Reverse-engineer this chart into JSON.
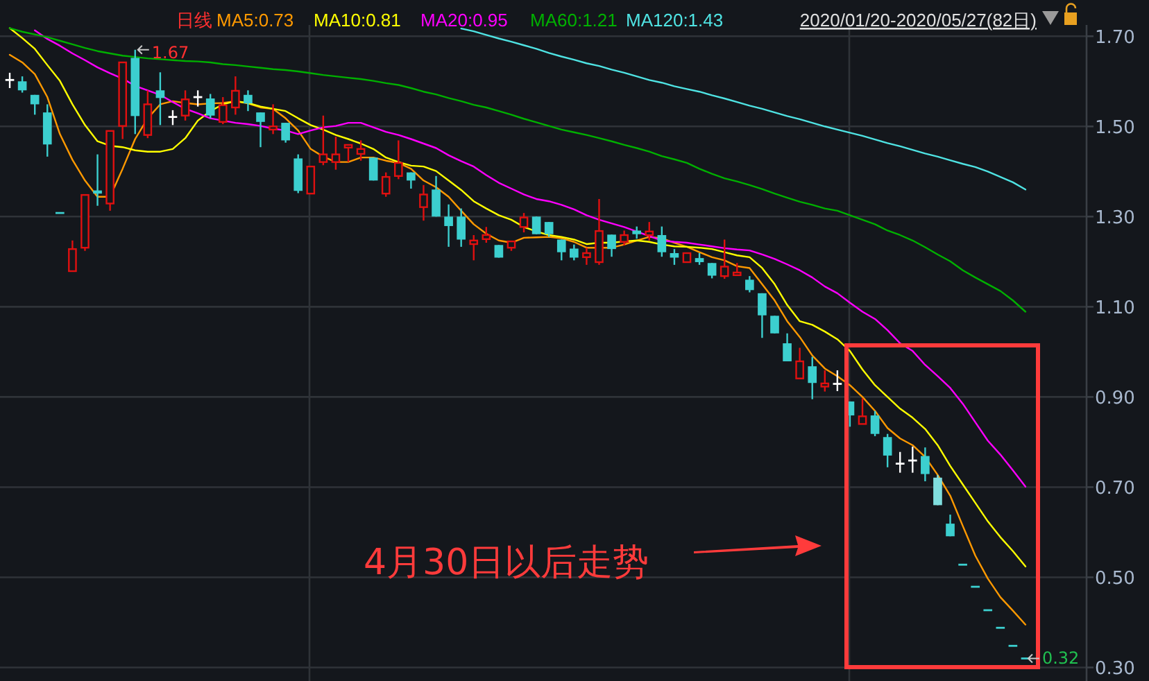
{
  "chart_data": {
    "type": "candlestick",
    "subtitle": "2020/01/20-2020/05/27(82日)",
    "annotations": [
      "日线",
      "4月30日以后走势",
      "1.67",
      "0.32"
    ],
    "categories": [
      null,
      null,
      null,
      null,
      null,
      null,
      null,
      null,
      null,
      null,
      null,
      null,
      null,
      null,
      null,
      null,
      null,
      null,
      null,
      null,
      null,
      null,
      null,
      null,
      null,
      null,
      null,
      null,
      null,
      null,
      null,
      null,
      null,
      null,
      null,
      null,
      null,
      null,
      null,
      null,
      null,
      null,
      null,
      null,
      null,
      null,
      null,
      null,
      null,
      null,
      null,
      null,
      null,
      null,
      null,
      null,
      null,
      null,
      null,
      null,
      null,
      null,
      null,
      null,
      null,
      null,
      null,
      null,
      null,
      null,
      null,
      null,
      null,
      null,
      null,
      null,
      null,
      null,
      null,
      null,
      null,
      null
    ],
    "ohlc": [
      [
        1.603,
        1.619,
        1.585,
        1.603
      ],
      [
        1.6,
        1.611,
        1.575,
        1.58
      ],
      [
        1.57,
        1.57,
        1.526,
        1.549
      ],
      [
        1.531,
        1.549,
        1.433,
        1.46
      ],
      [
        1.308,
        1.308,
        1.308,
        1.308
      ],
      [
        1.179,
        1.247,
        1.179,
        1.228
      ],
      [
        1.231,
        1.348,
        1.224,
        1.348
      ],
      [
        1.358,
        1.438,
        1.324,
        1.351
      ],
      [
        1.329,
        1.49,
        1.313,
        1.49
      ],
      [
        1.501,
        1.642,
        1.472,
        1.642
      ],
      [
        1.652,
        1.67,
        1.483,
        1.523
      ],
      [
        1.481,
        1.58,
        1.474,
        1.549
      ],
      [
        1.58,
        1.62,
        1.503,
        1.563
      ],
      [
        1.521,
        1.536,
        1.503,
        1.521
      ],
      [
        1.524,
        1.58,
        1.513,
        1.56
      ],
      [
        1.565,
        1.58,
        1.544,
        1.565
      ],
      [
        1.562,
        1.572,
        1.518,
        1.524
      ],
      [
        1.51,
        1.565,
        1.505,
        1.547
      ],
      [
        1.542,
        1.611,
        1.526,
        1.579
      ],
      [
        1.57,
        1.58,
        1.534,
        1.551
      ],
      [
        1.531,
        1.531,
        1.454,
        1.51
      ],
      [
        1.493,
        1.549,
        1.483,
        1.5
      ],
      [
        1.508,
        1.508,
        1.464,
        1.469
      ],
      [
        1.429,
        1.438,
        1.352,
        1.357
      ],
      [
        1.351,
        1.411,
        1.351,
        1.411
      ],
      [
        1.421,
        1.524,
        1.414,
        1.438
      ],
      [
        1.421,
        1.477,
        1.404,
        1.438
      ],
      [
        1.453,
        1.459,
        1.421,
        1.459
      ],
      [
        1.439,
        1.469,
        1.424,
        1.45
      ],
      [
        1.431,
        1.431,
        1.38,
        1.38
      ],
      [
        1.351,
        1.398,
        1.344,
        1.388
      ],
      [
        1.39,
        1.469,
        1.383,
        1.419
      ],
      [
        1.398,
        1.398,
        1.362,
        1.38
      ],
      [
        1.321,
        1.37,
        1.291,
        1.349
      ],
      [
        1.36,
        1.39,
        1.3,
        1.3
      ],
      [
        1.3,
        1.327,
        1.233,
        1.279
      ],
      [
        1.3,
        1.318,
        1.233,
        1.249
      ],
      [
        1.239,
        1.259,
        1.203,
        1.247
      ],
      [
        1.25,
        1.277,
        1.242,
        1.259
      ],
      [
        1.237,
        1.237,
        1.209,
        1.209
      ],
      [
        1.231,
        1.245,
        1.224,
        1.245
      ],
      [
        1.277,
        1.308,
        1.265,
        1.298
      ],
      [
        1.3,
        1.3,
        1.261,
        1.261
      ],
      [
        1.288,
        1.288,
        1.255,
        1.261
      ],
      [
        1.249,
        1.249,
        1.203,
        1.221
      ],
      [
        1.229,
        1.238,
        1.203,
        1.209
      ],
      [
        1.21,
        1.231,
        1.193,
        1.219
      ],
      [
        1.199,
        1.339,
        1.193,
        1.268
      ],
      [
        1.26,
        1.26,
        1.211,
        1.228
      ],
      [
        1.244,
        1.269,
        1.236,
        1.259
      ],
      [
        1.269,
        1.278,
        1.251,
        1.261
      ],
      [
        1.259,
        1.288,
        1.247,
        1.267
      ],
      [
        1.259,
        1.278,
        1.211,
        1.221
      ],
      [
        1.219,
        1.228,
        1.193,
        1.209
      ],
      [
        1.199,
        1.219,
        1.199,
        1.219
      ],
      [
        1.208,
        1.219,
        1.193,
        1.199
      ],
      [
        1.197,
        1.197,
        1.163,
        1.169
      ],
      [
        1.168,
        1.249,
        1.162,
        1.189
      ],
      [
        1.17,
        1.197,
        1.17,
        1.176
      ],
      [
        1.16,
        1.168,
        1.132,
        1.137
      ],
      [
        1.13,
        1.13,
        1.031,
        1.081
      ],
      [
        1.08,
        1.08,
        1.041,
        1.041
      ],
      [
        1.019,
        1.041,
        0.979,
        0.979
      ],
      [
        0.941,
        1.009,
        0.941,
        0.979
      ],
      [
        0.968,
        0.989,
        0.895,
        0.931
      ],
      [
        0.923,
        0.959,
        0.912,
        0.93
      ],
      [
        0.929,
        0.959,
        0.913,
        0.929
      ],
      [
        0.89,
        0.89,
        0.834,
        0.859
      ],
      [
        0.84,
        0.897,
        0.84,
        0.857
      ],
      [
        0.859,
        0.869,
        0.813,
        0.818
      ],
      [
        0.811,
        0.818,
        0.744,
        0.77
      ],
      [
        0.752,
        0.778,
        0.732,
        0.752
      ],
      [
        0.759,
        0.79,
        0.732,
        0.759
      ],
      [
        0.769,
        0.788,
        0.713,
        0.729
      ],
      [
        0.721,
        0.727,
        0.66,
        0.66
      ],
      [
        0.619,
        0.639,
        0.591,
        0.591
      ],
      [
        0.528,
        0.528,
        0.528,
        0.528
      ],
      [
        0.479,
        0.479,
        0.479,
        0.479
      ],
      [
        0.427,
        0.427,
        0.427,
        0.427
      ],
      [
        0.388,
        0.388,
        0.388,
        0.388
      ],
      [
        0.348,
        0.348,
        0.348,
        0.348
      ],
      [
        0.32,
        0.32,
        0.32,
        0.32
      ]
    ],
    "colors": [
      "#ffffff",
      "#3ccfcf",
      "#3ccfcf",
      "#3ccfcf",
      "#3ccfcf",
      "#e01010",
      "#e01010",
      "#3ccfcf",
      "#e01010",
      "#e01010",
      "#3ccfcf",
      "#e01010",
      "#3ccfcf",
      "#ffffff",
      "#e01010",
      "#ffffff",
      "#3ccfcf",
      "#e01010",
      "#e01010",
      "#3ccfcf",
      "#3ccfcf",
      "#e01010",
      "#3ccfcf",
      "#3ccfcf",
      "#e01010",
      "#e01010",
      "#e01010",
      "#e01010",
      "#e01010",
      "#3ccfcf",
      "#e01010",
      "#e01010",
      "#3ccfcf",
      "#e01010",
      "#3ccfcf",
      "#3ccfcf",
      "#3ccfcf",
      "#e01010",
      "#e01010",
      "#3ccfcf",
      "#e01010",
      "#e01010",
      "#3ccfcf",
      "#3ccfcf",
      "#3ccfcf",
      "#3ccfcf",
      "#e01010",
      "#e01010",
      "#3ccfcf",
      "#e01010",
      "#3ccfcf",
      "#e01010",
      "#3ccfcf",
      "#3ccfcf",
      "#e01010",
      "#3ccfcf",
      "#3ccfcf",
      "#e01010",
      "#e01010",
      "#3ccfcf",
      "#3ccfcf",
      "#3ccfcf",
      "#3ccfcf",
      "#e01010",
      "#3ccfcf",
      "#e01010",
      "#ffffff",
      "#3ccfcf",
      "#e01010",
      "#3ccfcf",
      "#3ccfcf",
      "#ffffff",
      "#ffffff",
      "#3ccfcf",
      "#80dede",
      "#3ccfcf",
      "#3ccfcf",
      "#3ccfcf",
      "#3ccfcf",
      "#3ccfcf",
      "#3ccfcf",
      "#3ccfcf"
    ],
    "series": [
      {
        "name": "MA5:0.73",
        "type": "line",
        "color": "#ff9900",
        "values": [
          1.659,
          1.642,
          1.616,
          1.565,
          1.483,
          1.426,
          1.38,
          1.344,
          1.344,
          1.406,
          1.472,
          1.518,
          1.549,
          1.556,
          1.552,
          1.549,
          1.551,
          1.552,
          1.556,
          1.551,
          1.542,
          1.539,
          1.518,
          1.491,
          1.45,
          1.433,
          1.421,
          1.421,
          1.431,
          1.431,
          1.424,
          1.419,
          1.406,
          1.38,
          1.365,
          1.344,
          1.313,
          1.283,
          1.262,
          1.247,
          1.242,
          1.253,
          1.254,
          1.255,
          1.252,
          1.244,
          1.231,
          1.231,
          1.231,
          1.238,
          1.247,
          1.255,
          1.252,
          1.242,
          1.233,
          1.221,
          1.21,
          1.203,
          1.19,
          1.186,
          1.15,
          1.114,
          1.068,
          1.033,
          0.992,
          0.963,
          0.946,
          0.926,
          0.9,
          0.869,
          0.831,
          0.808,
          0.793,
          0.767,
          0.727,
          0.681,
          0.614,
          0.548,
          0.497,
          0.456,
          0.426,
          0.395
        ]
      },
      {
        "name": "MA10:0.81",
        "type": "line",
        "color": "#ffff00",
        "values": [
          1.718,
          1.696,
          1.672,
          1.636,
          1.601,
          1.549,
          1.503,
          1.467,
          1.457,
          1.454,
          1.447,
          1.444,
          1.444,
          1.45,
          1.474,
          1.513,
          1.534,
          1.549,
          1.556,
          1.552,
          1.544,
          1.539,
          1.534,
          1.518,
          1.503,
          1.493,
          1.481,
          1.472,
          1.462,
          1.45,
          1.431,
          1.421,
          1.413,
          1.411,
          1.401,
          1.38,
          1.359,
          1.334,
          1.318,
          1.303,
          1.293,
          1.277,
          1.267,
          1.259,
          1.255,
          1.249,
          1.239,
          1.242,
          1.242,
          1.245,
          1.247,
          1.244,
          1.238,
          1.234,
          1.233,
          1.231,
          1.228,
          1.221,
          1.214,
          1.21,
          1.186,
          1.15,
          1.104,
          1.068,
          1.06,
          1.045,
          1.028,
          1.002,
          0.961,
          0.926,
          0.9,
          0.874,
          0.854,
          0.829,
          0.793,
          0.747,
          0.706,
          0.665,
          0.624,
          0.589,
          0.558,
          0.524
        ]
      },
      {
        "name": "MA20:0.95",
        "type": "line",
        "color": "#ff00ff",
        "values": [
          null,
          null,
          1.713,
          1.694,
          1.679,
          1.662,
          1.647,
          1.631,
          1.618,
          1.606,
          1.59,
          1.58,
          1.57,
          1.554,
          1.539,
          1.529,
          1.518,
          1.513,
          1.508,
          1.505,
          1.501,
          1.495,
          1.491,
          1.483,
          1.491,
          1.498,
          1.501,
          1.508,
          1.508,
          1.498,
          1.488,
          1.481,
          1.472,
          1.462,
          1.452,
          1.436,
          1.423,
          1.411,
          1.392,
          1.375,
          1.362,
          1.349,
          1.339,
          1.334,
          1.326,
          1.316,
          1.303,
          1.293,
          1.285,
          1.277,
          1.267,
          1.257,
          1.247,
          1.244,
          1.242,
          1.238,
          1.234,
          1.23,
          1.227,
          1.225,
          1.216,
          1.206,
          1.194,
          1.181,
          1.165,
          1.145,
          1.13,
          1.109,
          1.089,
          1.073,
          1.048,
          1.019,
          1.002,
          0.971,
          0.946,
          0.92,
          0.885,
          0.844,
          0.803,
          0.772,
          0.737,
          0.701
        ]
      },
      {
        "name": "MA60:1.21",
        "type": "line",
        "color": "#00b000",
        "values": [
          1.718,
          1.71,
          1.704,
          1.698,
          1.69,
          1.682,
          1.674,
          1.667,
          1.662,
          1.657,
          1.654,
          1.651,
          1.649,
          1.647,
          1.645,
          1.644,
          1.642,
          1.638,
          1.636,
          1.633,
          1.63,
          1.627,
          1.625,
          1.622,
          1.618,
          1.614,
          1.611,
          1.608,
          1.605,
          1.601,
          1.596,
          1.592,
          1.585,
          1.577,
          1.571,
          1.563,
          1.556,
          1.548,
          1.542,
          1.534,
          1.526,
          1.517,
          1.509,
          1.501,
          1.493,
          1.487,
          1.481,
          1.474,
          1.467,
          1.459,
          1.452,
          1.444,
          1.434,
          1.427,
          1.419,
          1.406,
          1.395,
          1.385,
          1.378,
          1.37,
          1.361,
          1.351,
          1.342,
          1.333,
          1.326,
          1.318,
          1.313,
          1.303,
          1.293,
          1.283,
          1.269,
          1.259,
          1.247,
          1.232,
          1.216,
          1.201,
          1.181,
          1.165,
          1.15,
          1.135,
          1.114,
          1.089
        ]
      },
      {
        "name": "MA120:1.43",
        "type": "line",
        "color": "#4fe3e3",
        "values": [
          null,
          null,
          null,
          null,
          null,
          null,
          null,
          null,
          null,
          null,
          null,
          null,
          null,
          null,
          null,
          null,
          null,
          null,
          null,
          null,
          null,
          null,
          null,
          null,
          null,
          null,
          null,
          null,
          null,
          null,
          null,
          null,
          null,
          null,
          null,
          null,
          1.717,
          1.711,
          1.703,
          1.695,
          1.688,
          1.68,
          1.672,
          1.663,
          1.655,
          1.648,
          1.64,
          1.634,
          1.626,
          1.619,
          1.611,
          1.603,
          1.597,
          1.589,
          1.583,
          1.577,
          1.569,
          1.562,
          1.554,
          1.546,
          1.539,
          1.531,
          1.523,
          1.516,
          1.508,
          1.5,
          1.493,
          1.486,
          1.479,
          1.471,
          1.463,
          1.456,
          1.448,
          1.44,
          1.433,
          1.425,
          1.417,
          1.41,
          1.4,
          1.388,
          1.376,
          1.36
        ]
      }
    ],
    "ylim": [
      0.27,
      1.725
    ],
    "yticks": [
      {
        "value": 0.3,
        "label": "0.30"
      },
      {
        "value": 0.5,
        "label": "0.50"
      },
      {
        "value": 0.7,
        "label": "0.70"
      },
      {
        "value": 0.9,
        "label": "0.90"
      },
      {
        "value": 1.1,
        "label": "1.10"
      },
      {
        "value": 1.3,
        "label": "1.30"
      },
      {
        "value": 1.5,
        "label": "1.50"
      },
      {
        "value": 1.7,
        "label": "1.70"
      }
    ],
    "grid": "y",
    "legend": "top",
    "tick_labels": "y"
  }
}
